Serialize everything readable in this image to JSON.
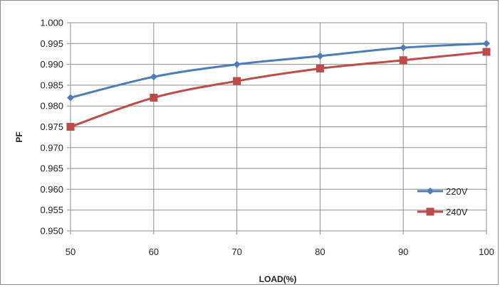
{
  "chart_data": {
    "type": "line",
    "title": "",
    "xlabel": "LOAD(%)",
    "ylabel": "PF",
    "x": [
      50,
      60,
      70,
      80,
      90,
      100
    ],
    "xlim": [
      50,
      100
    ],
    "ylim": [
      0.95,
      1.0
    ],
    "x_ticks": [
      "50",
      "60",
      "70",
      "80",
      "90",
      "100"
    ],
    "y_ticks": [
      "0.950",
      "0.955",
      "0.960",
      "0.965",
      "0.970",
      "0.975",
      "0.980",
      "0.985",
      "0.990",
      "0.995",
      "1.000"
    ],
    "grid": true,
    "smooth": true,
    "legend_position": "bottom-right",
    "series": [
      {
        "name": "220V",
        "values": [
          0.982,
          0.987,
          0.99,
          0.992,
          0.994,
          0.995
        ],
        "color": "#4a7ebb",
        "marker": "diamond"
      },
      {
        "name": "240V",
        "values": [
          0.975,
          0.982,
          0.986,
          0.989,
          0.991,
          0.993
        ],
        "color": "#be4b48",
        "marker": "square"
      }
    ]
  }
}
